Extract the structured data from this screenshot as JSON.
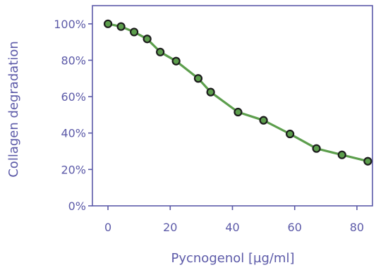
{
  "chart_data": {
    "type": "line",
    "title": "",
    "xlabel": "Pycnogenol [µg/ml]",
    "ylabel": "Collagen degradation",
    "xlim": [
      -5,
      85
    ],
    "ylim": [
      0,
      110
    ],
    "x_ticks": [
      0,
      20,
      40,
      60,
      80
    ],
    "x_tick_labels": [
      "0",
      "20",
      "40",
      "60",
      "80"
    ],
    "y_ticks": [
      0,
      20,
      40,
      60,
      80,
      100
    ],
    "y_tick_labels": [
      "0%",
      "20%",
      "40%",
      "60%",
      "80%",
      "100%"
    ],
    "grid": false,
    "legend": "none",
    "series": [
      {
        "x": [
          0,
          4.2,
          8.4,
          12.6,
          16.8,
          21.9,
          29,
          33,
          41.8,
          50,
          58.5,
          67,
          75.2,
          83.5
        ],
        "y": [
          100,
          98.5,
          95.5,
          91.7,
          84.5,
          79.5,
          70,
          62.5,
          51.5,
          47,
          39.5,
          31.5,
          28,
          24.5
        ]
      }
    ],
    "colors": {
      "axis": "#5c5aa8",
      "text": "#5c5aa8",
      "line": "#5c9e4c",
      "marker_fill": "#5c9e4c",
      "marker_edge": "#1c1c1c"
    }
  }
}
